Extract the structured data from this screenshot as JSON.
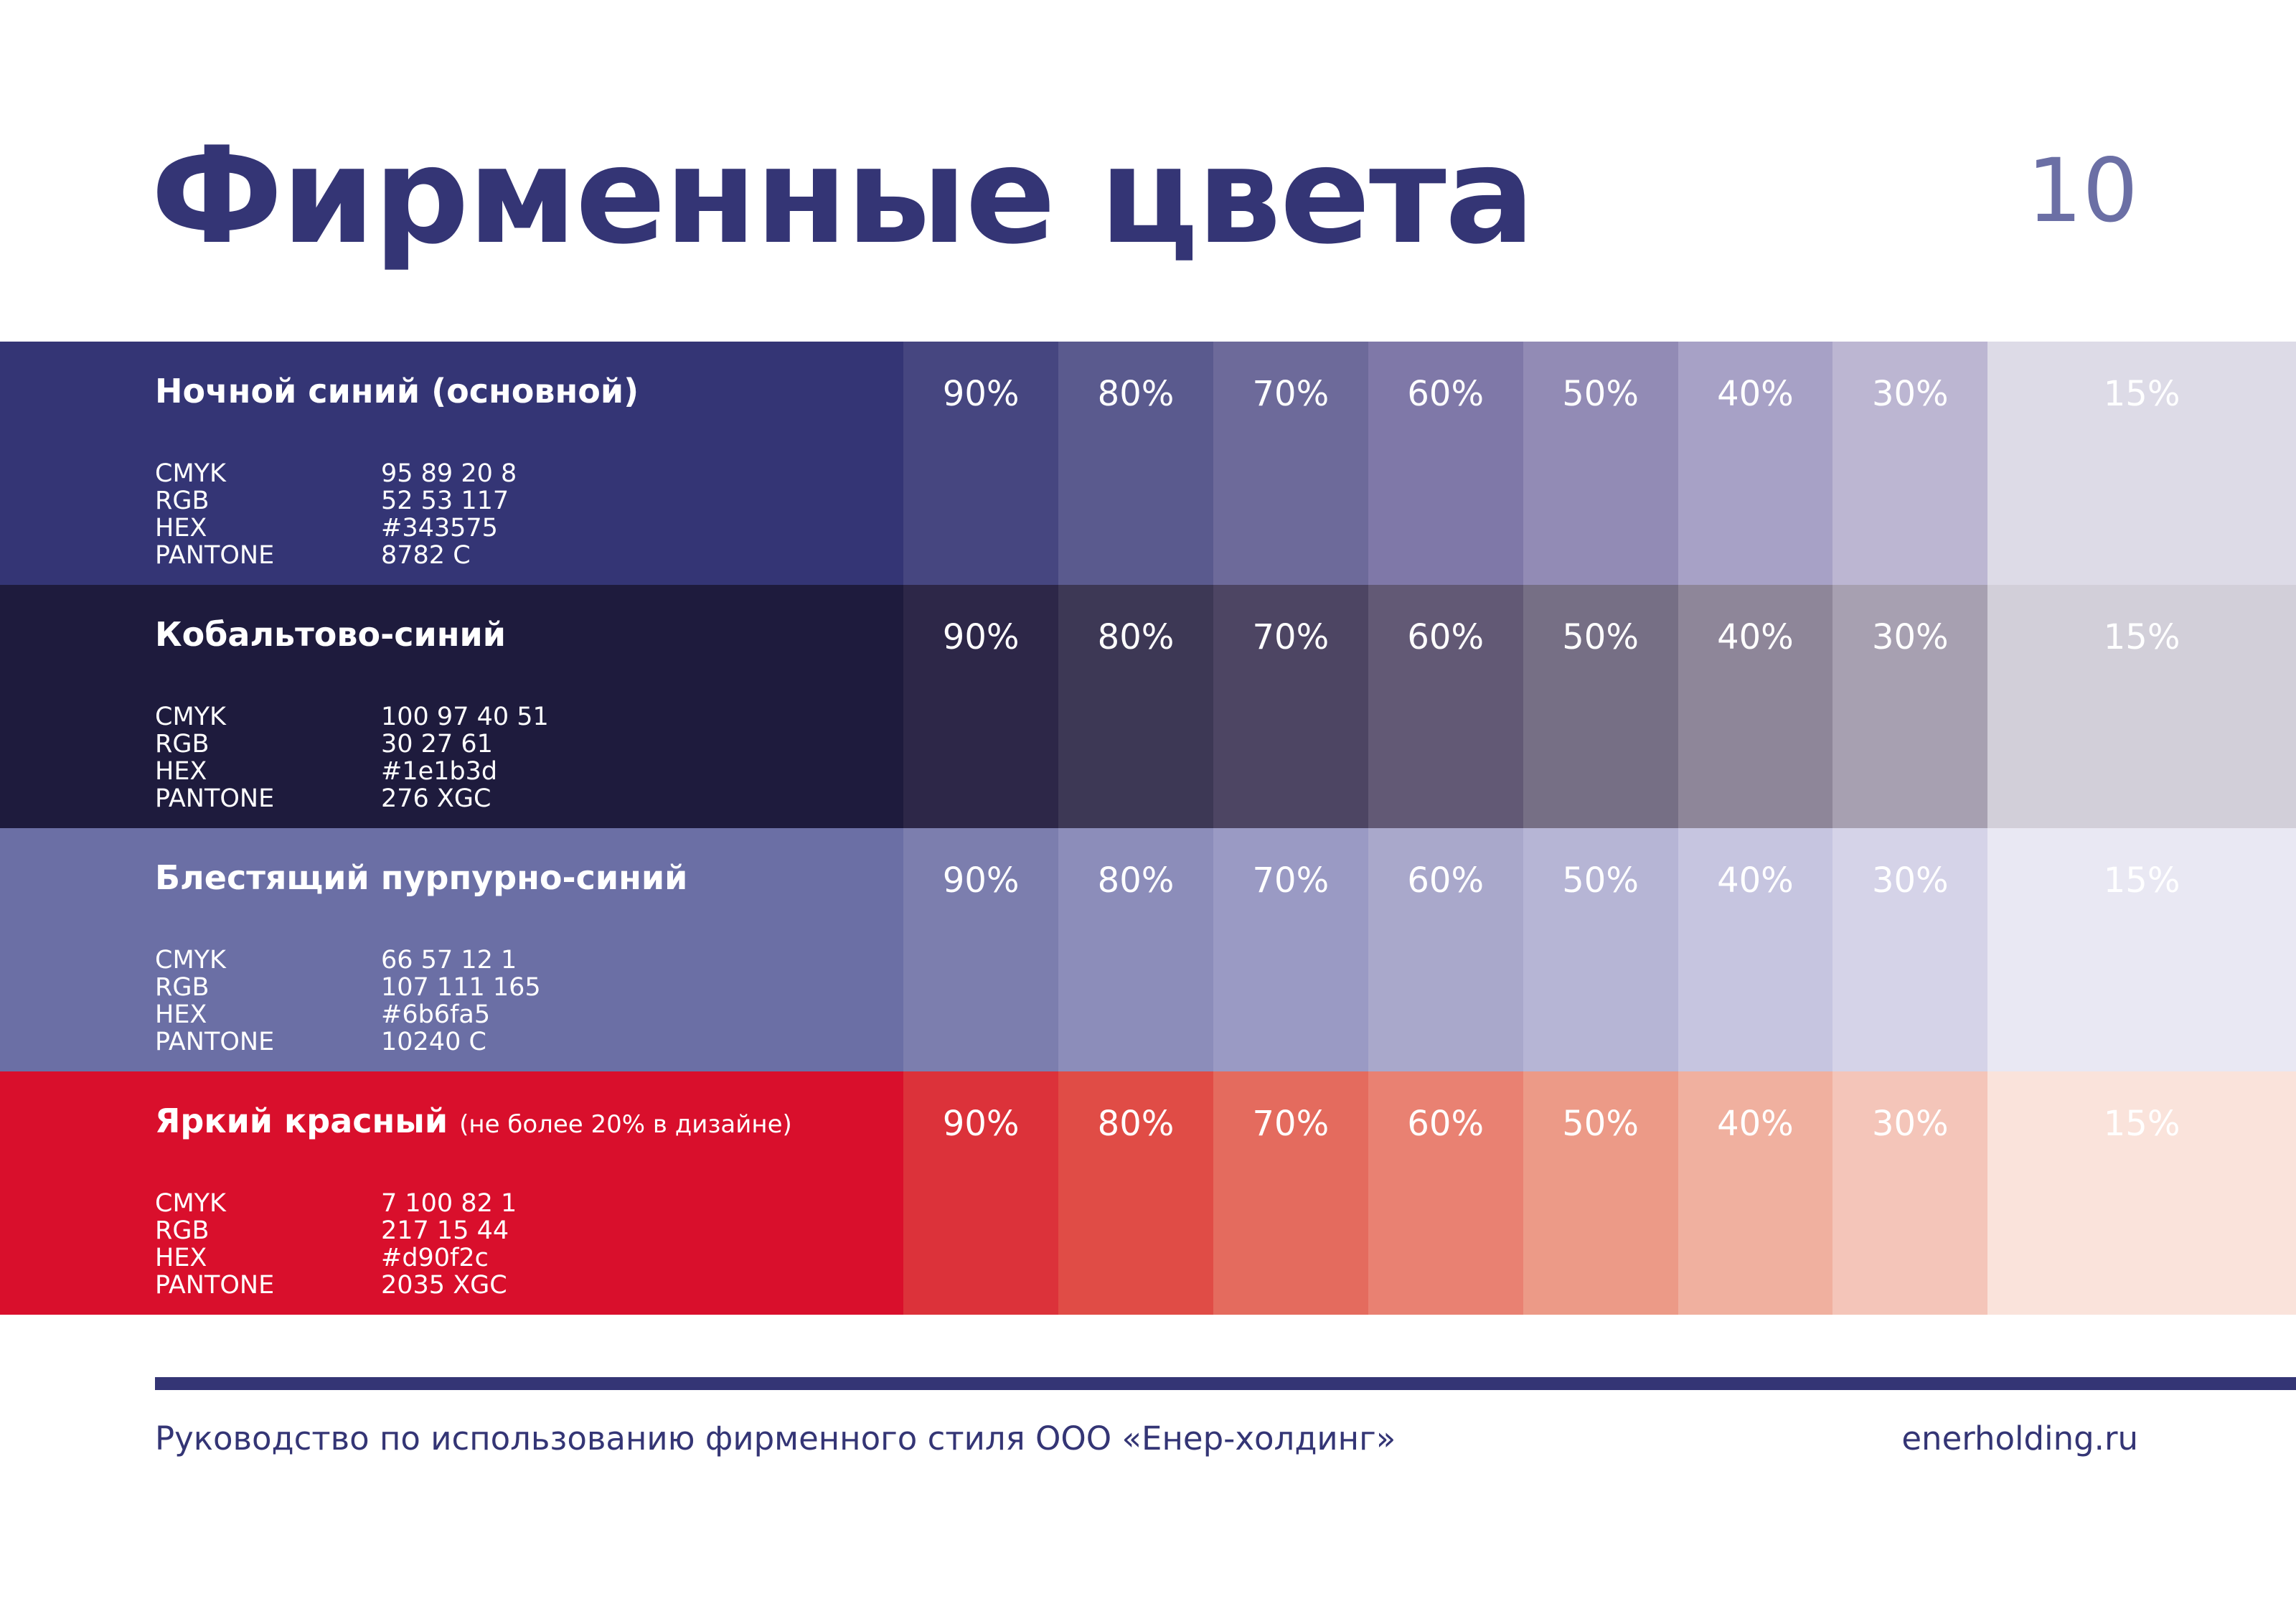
{
  "header": {
    "title": "Фирменные цвета",
    "page_number": "10"
  },
  "colors": [
    {
      "name": "Ночной синий (основной)",
      "color": "#343575",
      "specs": [
        [
          "CMYK",
          "95 89 20 8"
        ],
        [
          "RGB",
          "52 53 117"
        ],
        [
          "HEX",
          "#343575"
        ],
        [
          "PANTONE",
          "8782 C"
        ]
      ],
      "tints": [
        {
          "label": "90%",
          "color": "#464680"
        },
        {
          "label": "80%",
          "color": "#5a5a8e"
        },
        {
          "label": "70%",
          "color": "#6d6a9a"
        },
        {
          "label": "60%",
          "color": "#7f78a8"
        },
        {
          "label": "50%",
          "color": "#928bb5"
        },
        {
          "label": "40%",
          "color": "#a7a1c6"
        },
        {
          "label": "30%",
          "color": "#bcb6d2"
        },
        {
          "label": "15%",
          "color": "#dddbe7"
        }
      ]
    },
    {
      "name": "Кобальтово-синий",
      "color": "#1e1b3d",
      "specs": [
        [
          "CMYK",
          "100 97 40 51"
        ],
        [
          "RGB",
          "30 27 61"
        ],
        [
          "HEX",
          "#1e1b3d"
        ],
        [
          "PANTONE",
          "276 XGC"
        ]
      ],
      "tints": [
        {
          "label": "90%",
          "color": "#2d2748"
        },
        {
          "label": "80%",
          "color": "#3d3855"
        },
        {
          "label": "70%",
          "color": "#4d4563"
        },
        {
          "label": "60%",
          "color": "#625975"
        },
        {
          "label": "50%",
          "color": "#766f85"
        },
        {
          "label": "40%",
          "color": "#8e8699"
        },
        {
          "label": "30%",
          "color": "#a7a0b1"
        },
        {
          "label": "15%",
          "color": "#d2cfd9"
        }
      ]
    },
    {
      "name": "Блестящий пурпурно-синий",
      "color": "#6b6fa5",
      "specs": [
        [
          "CMYK",
          "66 57 12 1"
        ],
        [
          "RGB",
          "107 111 165"
        ],
        [
          "HEX",
          "#6b6fa5"
        ],
        [
          "PANTONE",
          "10240 C"
        ]
      ],
      "tints": [
        {
          "label": "90%",
          "color": "#7c7eae"
        },
        {
          "label": "80%",
          "color": "#8c8dba"
        },
        {
          "label": "70%",
          "color": "#9a9ac4"
        },
        {
          "label": "60%",
          "color": "#a9a8cb"
        },
        {
          "label": "50%",
          "color": "#b6b5d5"
        },
        {
          "label": "40%",
          "color": "#c6c5e0"
        },
        {
          "label": "30%",
          "color": "#d5d3e8"
        },
        {
          "label": "15%",
          "color": "#e9e8f3"
        }
      ]
    },
    {
      "name": "Яркий красный",
      "note": "(не более 20% в дизайне)",
      "color": "#d90f2c",
      "specs": [
        [
          "CMYK",
          "7 100 82 1"
        ],
        [
          "RGB",
          "217 15 44"
        ],
        [
          "HEX",
          "#d90f2c"
        ],
        [
          "PANTONE",
          "2035 XGC"
        ]
      ],
      "tints": [
        {
          "label": "90%",
          "color": "#dc323a"
        },
        {
          "label": "80%",
          "color": "#e04c46"
        },
        {
          "label": "70%",
          "color": "#e46b5e"
        },
        {
          "label": "60%",
          "color": "#e98172"
        },
        {
          "label": "50%",
          "color": "#ec9a87"
        },
        {
          "label": "40%",
          "color": "#f0b09f"
        },
        {
          "label": "30%",
          "color": "#f4c5b9"
        },
        {
          "label": "15%",
          "color": "#fae3db"
        }
      ]
    }
  ],
  "footer": {
    "text": "Руководство по использованию фирменного стиля ООО «Енер-холдинг»",
    "url": "enerholding.ru"
  }
}
